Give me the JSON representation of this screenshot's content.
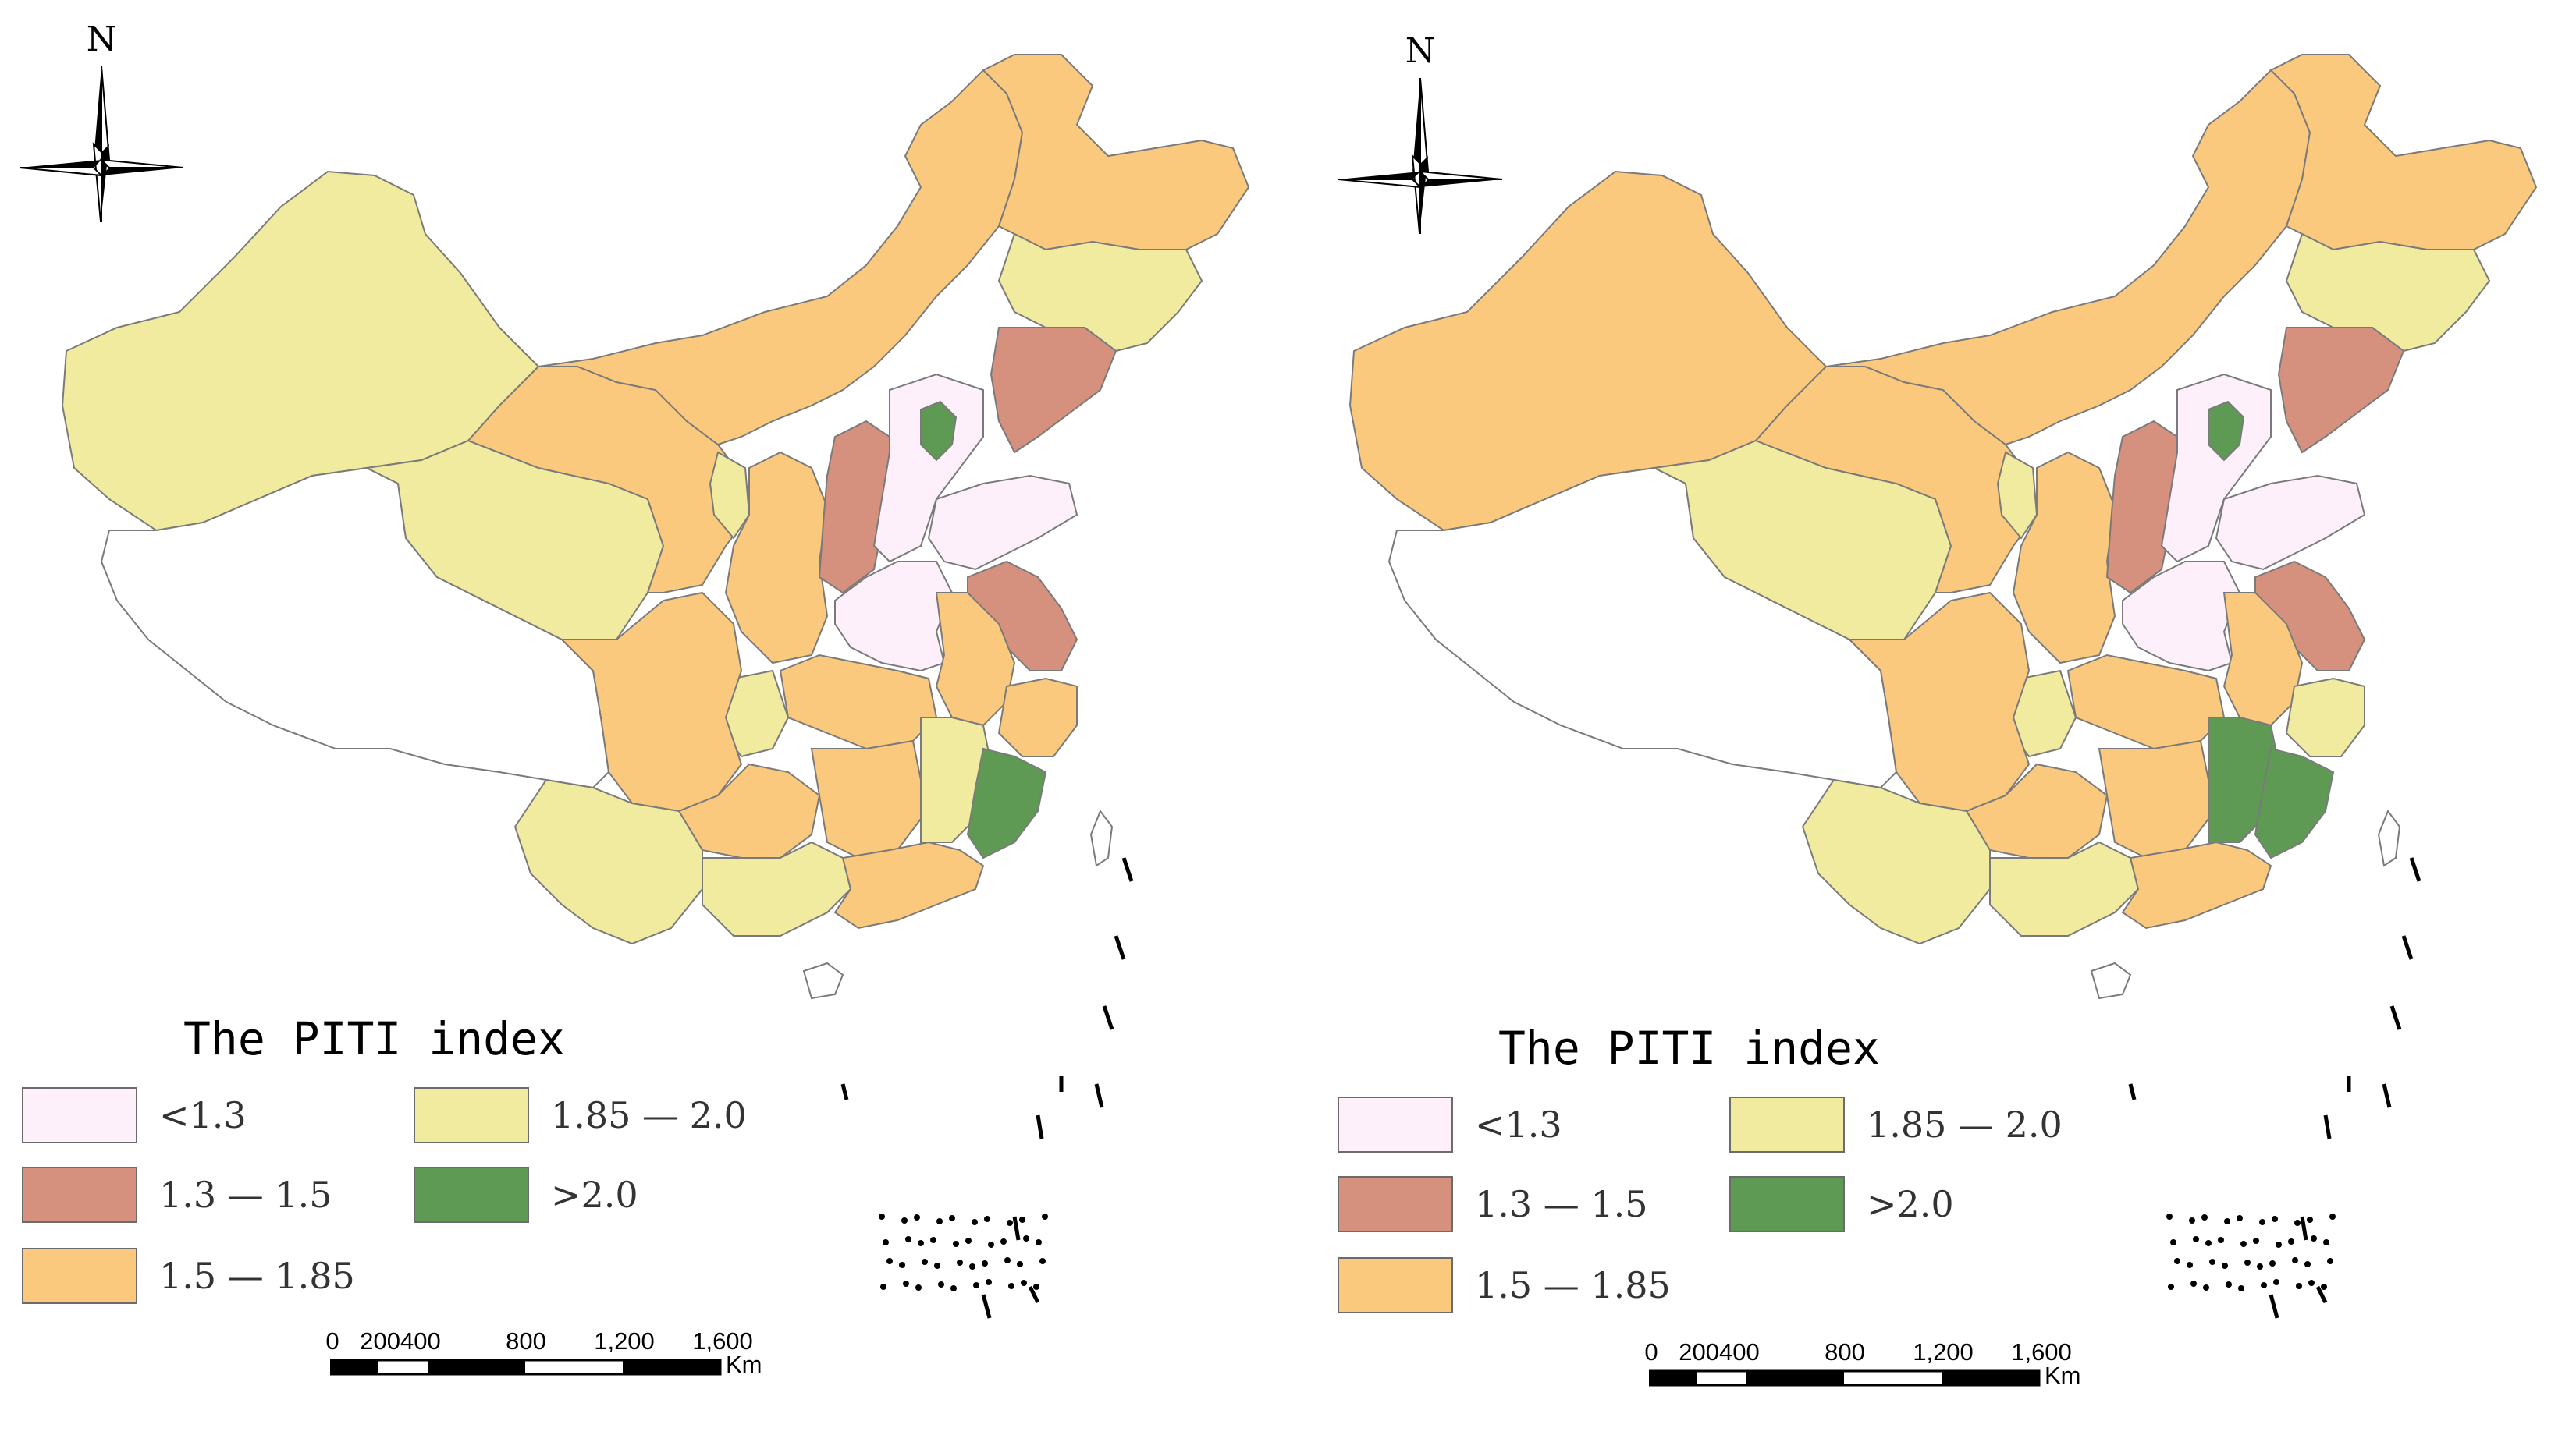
{
  "north_label": "N",
  "legend": {
    "title": "The PITI index",
    "items": [
      {
        "label": "<1.3",
        "color": "#fdf0fb"
      },
      {
        "label": "1.3 — 1.5",
        "color": "#d6907e"
      },
      {
        "label": "1.5 — 1.85",
        "color": "#fbc97d"
      },
      {
        "label": "1.85 — 2.0",
        "color": "#f1eb9f"
      },
      {
        "label": ">2.0",
        "color": "#5f9a55"
      }
    ]
  },
  "scale_bar": {
    "ticks": [
      "0",
      "200400",
      "800",
      "1,200",
      "1,600"
    ],
    "unit": "Km"
  },
  "maps": [
    {
      "id": "left",
      "regions": {
        "xinjiang": "1.85-2.0",
        "tibet": "none",
        "qinghai": "1.85-2.0",
        "gansu": "1.5-1.85",
        "inner_mongolia": "1.5-1.85",
        "heilongjiang": "1.5-1.85",
        "jilin": "1.85-2.0",
        "liaoning": "1.3-1.5",
        "beijing_tianjin": ">2.0",
        "hebei": "<1.3",
        "shanxi": "1.3-1.5",
        "shandong": "<1.3",
        "henan": "<1.3",
        "jiangsu": "1.3-1.5",
        "anhui": "1.5-1.85",
        "zhejiang": "1.5-1.85",
        "fujian": ">2.0",
        "jiangxi": "1.85-2.0",
        "hubei": "1.5-1.85",
        "hunan": "1.5-1.85",
        "guangdong": "1.5-1.85",
        "guangxi": "1.85-2.0",
        "yunnan": "1.85-2.0",
        "guizhou": "1.5-1.85",
        "sichuan": "1.5-1.85",
        "chongqing": "1.85-2.0",
        "shaanxi": "1.5-1.85",
        "ningxia": "1.85-2.0"
      }
    },
    {
      "id": "right",
      "regions": {
        "xinjiang": "1.5-1.85",
        "tibet": "none",
        "qinghai": "1.85-2.0",
        "gansu": "1.5-1.85",
        "inner_mongolia": "1.5-1.85",
        "heilongjiang": "1.5-1.85",
        "jilin": "1.85-2.0",
        "liaoning": "1.3-1.5",
        "beijing_tianjin": ">2.0",
        "hebei": "<1.3",
        "shanxi": "1.3-1.5",
        "shandong": "<1.3",
        "henan": "<1.3",
        "jiangsu": "1.3-1.5",
        "anhui": "1.5-1.85",
        "zhejiang": "1.85-2.0",
        "fujian": ">2.0",
        "jiangxi": ">2.0",
        "hubei": "1.5-1.85",
        "hunan": "1.5-1.85",
        "guangdong": "1.5-1.85",
        "guangxi": "1.85-2.0",
        "yunnan": "1.85-2.0",
        "guizhou": "1.5-1.85",
        "sichuan": "1.5-1.85",
        "chongqing": "1.85-2.0",
        "shaanxi": "1.5-1.85",
        "ningxia": "1.85-2.0"
      }
    }
  ]
}
